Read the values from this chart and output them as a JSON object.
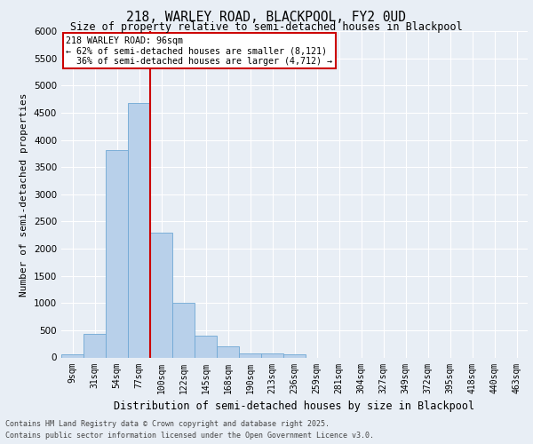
{
  "title_line1": "218, WARLEY ROAD, BLACKPOOL, FY2 0UD",
  "title_line2": "Size of property relative to semi-detached houses in Blackpool",
  "xlabel": "Distribution of semi-detached houses by size in Blackpool",
  "ylabel": "Number of semi-detached properties",
  "categories": [
    "9sqm",
    "31sqm",
    "54sqm",
    "77sqm",
    "100sqm",
    "122sqm",
    "145sqm",
    "168sqm",
    "190sqm",
    "213sqm",
    "236sqm",
    "259sqm",
    "281sqm",
    "304sqm",
    "327sqm",
    "349sqm",
    "372sqm",
    "395sqm",
    "418sqm",
    "440sqm",
    "463sqm"
  ],
  "values": [
    50,
    430,
    3820,
    4680,
    2300,
    1000,
    400,
    200,
    80,
    70,
    60,
    0,
    0,
    0,
    0,
    0,
    0,
    0,
    0,
    0,
    0
  ],
  "bar_color": "#b8d0ea",
  "bar_edge_color": "#6fa8d4",
  "vertical_line_color": "#cc0000",
  "annotation_text": "218 WARLEY ROAD: 96sqm\n← 62% of semi-detached houses are smaller (8,121)\n  36% of semi-detached houses are larger (4,712) →",
  "annotation_box_color": "#cc0000",
  "ylim": [
    0,
    6000
  ],
  "yticks": [
    0,
    500,
    1000,
    1500,
    2000,
    2500,
    3000,
    3500,
    4000,
    4500,
    5000,
    5500,
    6000
  ],
  "footer_line1": "Contains HM Land Registry data © Crown copyright and database right 2025.",
  "footer_line2": "Contains public sector information licensed under the Open Government Licence v3.0.",
  "background_color": "#e8eef5",
  "plot_bg_color": "#e8eef5",
  "grid_color": "#ffffff",
  "vline_bar_index": 4
}
